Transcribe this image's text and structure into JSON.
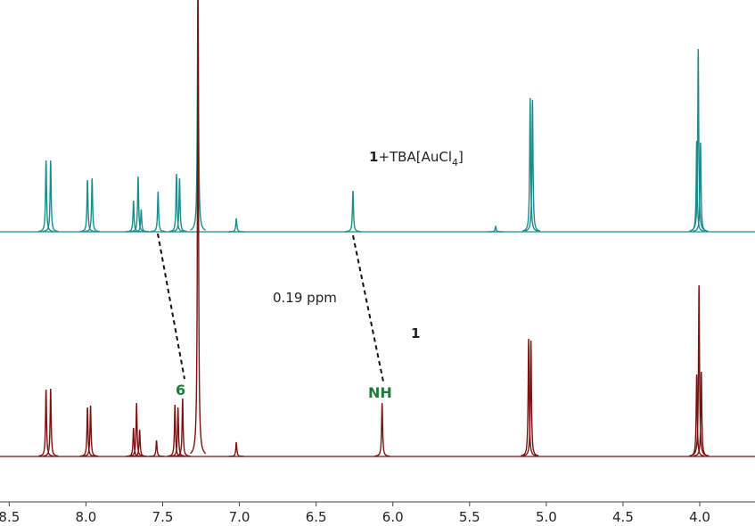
{
  "chart_data": {
    "type": "spectrum",
    "xlim": [
      8.56,
      3.64
    ],
    "xticks": [
      8.5,
      {
        "value": 8,
        "label": "8.0"
      },
      7.5,
      {
        "value": 7,
        "label": "7.0"
      },
      6.5,
      {
        "value": 6,
        "label": "6.0"
      },
      5.5,
      {
        "value": 5,
        "label": "5.0"
      },
      4.5,
      {
        "value": 4,
        "label": "4.0"
      }
    ],
    "ylim": [
      0,
      260
    ],
    "series": [
      {
        "color": "#1a8c8c",
        "x": [
          8.26,
          8.23,
          7.99,
          7.96,
          7.69,
          7.66,
          7.64,
          7.53,
          7.41,
          7.39,
          7.27,
          7.02,
          6.26,
          5.33,
          5.105,
          5.09,
          4.02,
          4.01,
          3.995
        ],
        "values": [
          80,
          80,
          58,
          60,
          35,
          62,
          25,
          45,
          65,
          60,
          300,
          15,
          46,
          6,
          150,
          148,
          102,
          205,
          100
        ]
      },
      {
        "color": "#7a1212",
        "x": [
          8.26,
          8.23,
          7.99,
          7.97,
          7.69,
          7.67,
          7.65,
          7.54,
          7.42,
          7.4,
          7.37,
          7.27,
          7.02,
          6.07,
          5.115,
          5.1,
          4.02,
          4.005,
          3.99
        ],
        "values": [
          75,
          76,
          55,
          57,
          32,
          60,
          30,
          18,
          58,
          55,
          65,
          520,
          16,
          60,
          132,
          130,
          92,
          192,
          95
        ]
      }
    ],
    "annotations": {
      "top_label_bold": "1",
      "top_label_text": "+TBA[AuCl",
      "top_label_sub": "4",
      "top_label_end": "]",
      "bottom_label": "1",
      "shift_label": "0.19 ppm",
      "peak6_label": "6",
      "nh_label": "NH"
    }
  }
}
